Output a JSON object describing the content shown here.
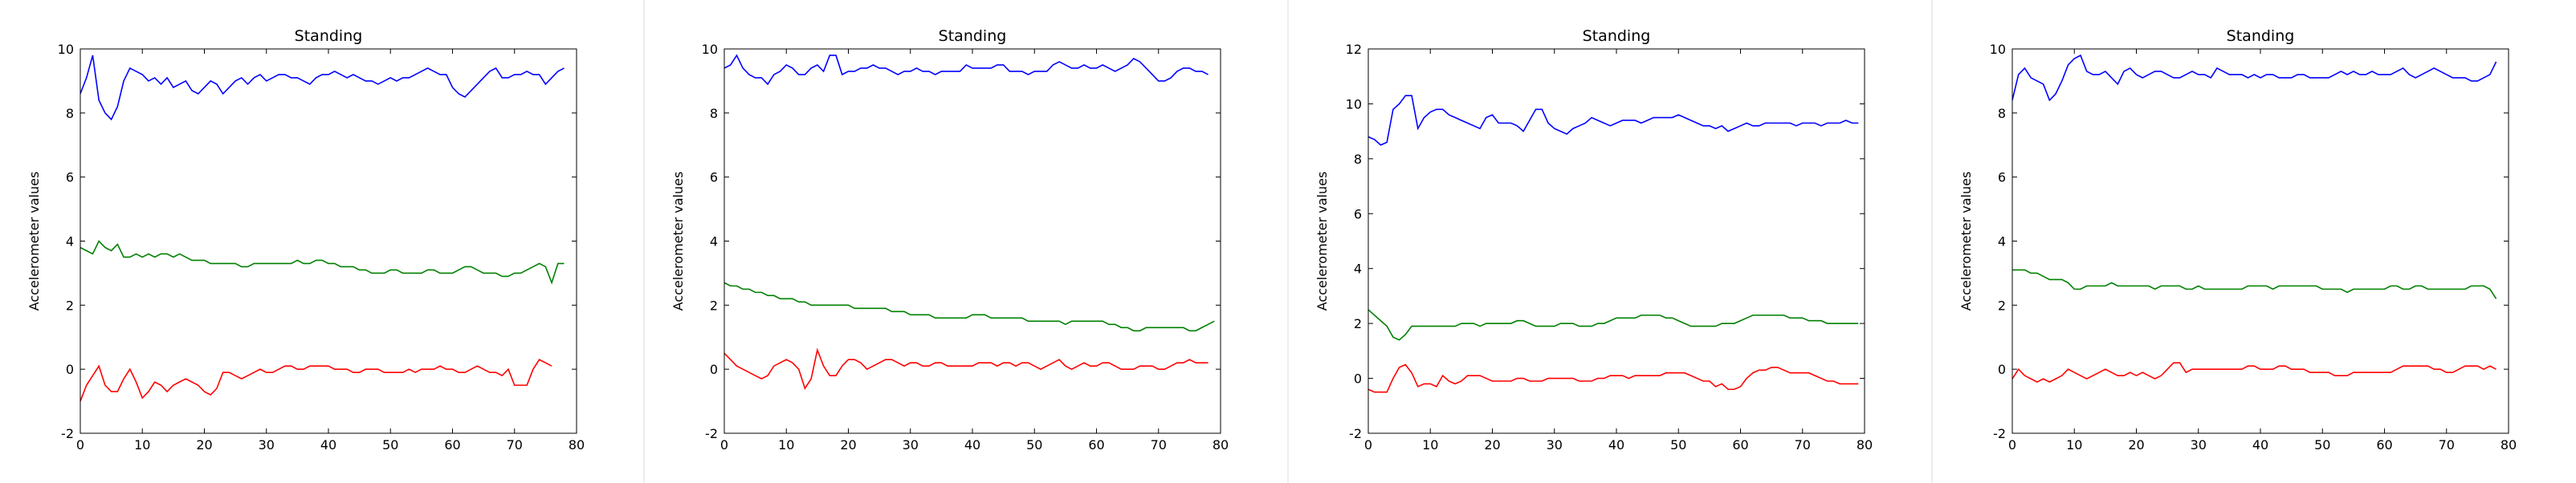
{
  "chart_data": [
    {
      "type": "line",
      "title": "Standing",
      "xlabel": "",
      "ylabel": "Accelerometer values",
      "xlim": [
        0,
        80
      ],
      "ylim": [
        -2,
        10
      ],
      "xticks": [
        0,
        10,
        20,
        30,
        40,
        50,
        60,
        70,
        80
      ],
      "yticks": [
        -2,
        0,
        2,
        4,
        6,
        8,
        10
      ],
      "grid": false,
      "series": [
        {
          "color": "#0000ff",
          "values": [
            8.6,
            9.1,
            9.8,
            8.4,
            8.0,
            7.8,
            8.2,
            9.0,
            9.4,
            9.3,
            9.2,
            9.0,
            9.1,
            8.9,
            9.1,
            8.8,
            8.9,
            9.0,
            8.7,
            8.6,
            8.8,
            9.0,
            8.9,
            8.6,
            8.8,
            9.0,
            9.1,
            8.9,
            9.1,
            9.2,
            9.0,
            9.1,
            9.2,
            9.2,
            9.1,
            9.1,
            9.0,
            8.9,
            9.1,
            9.2,
            9.2,
            9.3,
            9.2,
            9.1,
            9.2,
            9.1,
            9.0,
            9.0,
            8.9,
            9.0,
            9.1,
            9.0,
            9.1,
            9.1,
            9.2,
            9.3,
            9.4,
            9.3,
            9.2,
            9.2,
            8.8,
            8.6,
            8.5,
            8.7,
            8.9,
            9.1,
            9.3,
            9.4,
            9.1,
            9.1,
            9.2,
            9.2,
            9.3,
            9.2,
            9.2,
            8.9,
            9.1,
            9.3,
            9.4
          ]
        },
        {
          "color": "#008000",
          "values": [
            3.8,
            3.7,
            3.6,
            4.0,
            3.8,
            3.7,
            3.9,
            3.5,
            3.5,
            3.6,
            3.5,
            3.6,
            3.5,
            3.6,
            3.6,
            3.5,
            3.6,
            3.5,
            3.4,
            3.4,
            3.4,
            3.3,
            3.3,
            3.3,
            3.3,
            3.3,
            3.2,
            3.2,
            3.3,
            3.3,
            3.3,
            3.3,
            3.3,
            3.3,
            3.3,
            3.4,
            3.3,
            3.3,
            3.4,
            3.4,
            3.3,
            3.3,
            3.2,
            3.2,
            3.2,
            3.1,
            3.1,
            3.0,
            3.0,
            3.0,
            3.1,
            3.1,
            3.0,
            3.0,
            3.0,
            3.0,
            3.1,
            3.1,
            3.0,
            3.0,
            3.0,
            3.1,
            3.2,
            3.2,
            3.1,
            3.0,
            3.0,
            3.0,
            2.9,
            2.9,
            3.0,
            3.0,
            3.1,
            3.2,
            3.3,
            3.2,
            2.7,
            3.3,
            3.3
          ]
        },
        {
          "color": "#ff0000",
          "values": [
            -1.0,
            -0.5,
            -0.2,
            0.1,
            -0.5,
            -0.7,
            -0.7,
            -0.3,
            0.0,
            -0.4,
            -0.9,
            -0.7,
            -0.4,
            -0.5,
            -0.7,
            -0.5,
            -0.4,
            -0.3,
            -0.4,
            -0.5,
            -0.7,
            -0.8,
            -0.6,
            -0.1,
            -0.1,
            -0.2,
            -0.3,
            -0.2,
            -0.1,
            0.0,
            -0.1,
            -0.1,
            0.0,
            0.1,
            0.1,
            0.0,
            0.0,
            0.1,
            0.1,
            0.1,
            0.1,
            0.0,
            0.0,
            0.0,
            -0.1,
            -0.1,
            0.0,
            0.0,
            0.0,
            -0.1,
            -0.1,
            -0.1,
            -0.1,
            0.0,
            -0.1,
            0.0,
            0.0,
            0.0,
            0.1,
            0.0,
            0.0,
            -0.1,
            -0.1,
            0.0,
            0.1,
            0.0,
            -0.1,
            -0.1,
            -0.2,
            0.0,
            -0.5,
            -0.5,
            -0.5,
            0.0,
            0.3,
            0.2,
            0.1
          ]
        }
      ]
    },
    {
      "type": "line",
      "title": "Standing",
      "xlabel": "",
      "ylabel": "Accelerometer values",
      "xlim": [
        0,
        80
      ],
      "ylim": [
        -2,
        10
      ],
      "xticks": [
        0,
        10,
        20,
        30,
        40,
        50,
        60,
        70,
        80
      ],
      "yticks": [
        -2,
        0,
        2,
        4,
        6,
        8,
        10
      ],
      "grid": false,
      "series": [
        {
          "color": "#0000ff",
          "values": [
            9.4,
            9.5,
            9.8,
            9.4,
            9.2,
            9.1,
            9.1,
            8.9,
            9.2,
            9.3,
            9.5,
            9.4,
            9.2,
            9.2,
            9.4,
            9.5,
            9.3,
            9.8,
            9.8,
            9.2,
            9.3,
            9.3,
            9.4,
            9.4,
            9.5,
            9.4,
            9.4,
            9.3,
            9.2,
            9.3,
            9.3,
            9.4,
            9.3,
            9.3,
            9.2,
            9.3,
            9.3,
            9.3,
            9.3,
            9.5,
            9.4,
            9.4,
            9.4,
            9.4,
            9.5,
            9.5,
            9.3,
            9.3,
            9.3,
            9.2,
            9.3,
            9.3,
            9.3,
            9.5,
            9.6,
            9.5,
            9.4,
            9.4,
            9.5,
            9.4,
            9.4,
            9.5,
            9.4,
            9.3,
            9.4,
            9.5,
            9.7,
            9.6,
            9.4,
            9.2,
            9.0,
            9.0,
            9.1,
            9.3,
            9.4,
            9.4,
            9.3,
            9.3,
            9.2
          ]
        },
        {
          "color": "#008000",
          "values": [
            2.7,
            2.6,
            2.6,
            2.5,
            2.5,
            2.4,
            2.4,
            2.3,
            2.3,
            2.2,
            2.2,
            2.2,
            2.1,
            2.1,
            2.0,
            2.0,
            2.0,
            2.0,
            2.0,
            2.0,
            2.0,
            1.9,
            1.9,
            1.9,
            1.9,
            1.9,
            1.9,
            1.8,
            1.8,
            1.8,
            1.7,
            1.7,
            1.7,
            1.7,
            1.6,
            1.6,
            1.6,
            1.6,
            1.6,
            1.6,
            1.7,
            1.7,
            1.7,
            1.6,
            1.6,
            1.6,
            1.6,
            1.6,
            1.6,
            1.5,
            1.5,
            1.5,
            1.5,
            1.5,
            1.5,
            1.4,
            1.5,
            1.5,
            1.5,
            1.5,
            1.5,
            1.5,
            1.4,
            1.4,
            1.3,
            1.3,
            1.2,
            1.2,
            1.3,
            1.3,
            1.3,
            1.3,
            1.3,
            1.3,
            1.3,
            1.2,
            1.2,
            1.3,
            1.4,
            1.5
          ]
        },
        {
          "color": "#ff0000",
          "values": [
            0.5,
            0.3,
            0.1,
            0.0,
            -0.1,
            -0.2,
            -0.3,
            -0.2,
            0.1,
            0.2,
            0.3,
            0.2,
            0.0,
            -0.6,
            -0.3,
            0.6,
            0.1,
            -0.2,
            -0.2,
            0.1,
            0.3,
            0.3,
            0.2,
            0.0,
            0.1,
            0.2,
            0.3,
            0.3,
            0.2,
            0.1,
            0.2,
            0.2,
            0.1,
            0.1,
            0.2,
            0.2,
            0.1,
            0.1,
            0.1,
            0.1,
            0.1,
            0.2,
            0.2,
            0.2,
            0.1,
            0.2,
            0.2,
            0.1,
            0.2,
            0.2,
            0.1,
            0.0,
            0.1,
            0.2,
            0.3,
            0.1,
            0.0,
            0.1,
            0.2,
            0.1,
            0.1,
            0.2,
            0.2,
            0.1,
            0.0,
            0.0,
            0.0,
            0.1,
            0.1,
            0.1,
            0.0,
            0.0,
            0.1,
            0.2,
            0.2,
            0.3,
            0.2,
            0.2,
            0.2
          ]
        }
      ]
    },
    {
      "type": "line",
      "title": "Standing",
      "xlabel": "",
      "ylabel": "Accelerometer values",
      "xlim": [
        0,
        80
      ],
      "ylim": [
        -2,
        12
      ],
      "xticks": [
        0,
        10,
        20,
        30,
        40,
        50,
        60,
        70,
        80
      ],
      "yticks": [
        -2,
        0,
        2,
        4,
        6,
        8,
        10,
        12
      ],
      "grid": false,
      "series": [
        {
          "color": "#0000ff",
          "values": [
            8.8,
            8.7,
            8.5,
            8.6,
            9.8,
            10.0,
            10.3,
            10.3,
            9.1,
            9.5,
            9.7,
            9.8,
            9.8,
            9.6,
            9.5,
            9.4,
            9.3,
            9.2,
            9.1,
            9.5,
            9.6,
            9.3,
            9.3,
            9.3,
            9.2,
            9.0,
            9.4,
            9.8,
            9.8,
            9.3,
            9.1,
            9.0,
            8.9,
            9.1,
            9.2,
            9.3,
            9.5,
            9.4,
            9.3,
            9.2,
            9.3,
            9.4,
            9.4,
            9.4,
            9.3,
            9.4,
            9.5,
            9.5,
            9.5,
            9.5,
            9.6,
            9.5,
            9.4,
            9.3,
            9.2,
            9.2,
            9.1,
            9.2,
            9.0,
            9.1,
            9.2,
            9.3,
            9.2,
            9.2,
            9.3,
            9.3,
            9.3,
            9.3,
            9.3,
            9.2,
            9.3,
            9.3,
            9.3,
            9.2,
            9.3,
            9.3,
            9.3,
            9.4,
            9.3,
            9.3
          ]
        },
        {
          "color": "#008000",
          "values": [
            2.5,
            2.3,
            2.1,
            1.9,
            1.5,
            1.4,
            1.6,
            1.9,
            1.9,
            1.9,
            1.9,
            1.9,
            1.9,
            1.9,
            1.9,
            2.0,
            2.0,
            2.0,
            1.9,
            2.0,
            2.0,
            2.0,
            2.0,
            2.0,
            2.1,
            2.1,
            2.0,
            1.9,
            1.9,
            1.9,
            1.9,
            2.0,
            2.0,
            2.0,
            1.9,
            1.9,
            1.9,
            2.0,
            2.0,
            2.1,
            2.2,
            2.2,
            2.2,
            2.2,
            2.3,
            2.3,
            2.3,
            2.3,
            2.2,
            2.2,
            2.1,
            2.0,
            1.9,
            1.9,
            1.9,
            1.9,
            1.9,
            2.0,
            2.0,
            2.0,
            2.1,
            2.2,
            2.3,
            2.3,
            2.3,
            2.3,
            2.3,
            2.3,
            2.2,
            2.2,
            2.2,
            2.1,
            2.1,
            2.1,
            2.0,
            2.0,
            2.0,
            2.0,
            2.0,
            2.0
          ]
        },
        {
          "color": "#ff0000",
          "values": [
            -0.4,
            -0.5,
            -0.5,
            -0.5,
            0.0,
            0.4,
            0.5,
            0.2,
            -0.3,
            -0.2,
            -0.2,
            -0.3,
            0.1,
            -0.1,
            -0.2,
            -0.1,
            0.1,
            0.1,
            0.1,
            0.0,
            -0.1,
            -0.1,
            -0.1,
            -0.1,
            0.0,
            0.0,
            -0.1,
            -0.1,
            -0.1,
            0.0,
            0.0,
            0.0,
            0.0,
            0.0,
            -0.1,
            -0.1,
            -0.1,
            0.0,
            0.0,
            0.1,
            0.1,
            0.1,
            0.0,
            0.1,
            0.1,
            0.1,
            0.1,
            0.1,
            0.2,
            0.2,
            0.2,
            0.2,
            0.1,
            0.0,
            -0.1,
            -0.1,
            -0.3,
            -0.2,
            -0.4,
            -0.4,
            -0.3,
            0.0,
            0.2,
            0.3,
            0.3,
            0.4,
            0.4,
            0.3,
            0.2,
            0.2,
            0.2,
            0.2,
            0.1,
            0.0,
            -0.1,
            -0.1,
            -0.2,
            -0.2,
            -0.2,
            -0.2
          ]
        }
      ]
    },
    {
      "type": "line",
      "title": "Standing",
      "xlabel": "",
      "ylabel": "Accelerometer values",
      "xlim": [
        0,
        80
      ],
      "ylim": [
        -2,
        10
      ],
      "xticks": [
        0,
        10,
        20,
        30,
        40,
        50,
        60,
        70,
        80
      ],
      "yticks": [
        -2,
        0,
        2,
        4,
        6,
        8,
        10
      ],
      "grid": false,
      "series": [
        {
          "color": "#0000ff",
          "values": [
            8.4,
            9.2,
            9.4,
            9.1,
            9.0,
            8.9,
            8.4,
            8.6,
            9.0,
            9.5,
            9.7,
            9.8,
            9.3,
            9.2,
            9.2,
            9.3,
            9.1,
            8.9,
            9.3,
            9.4,
            9.2,
            9.1,
            9.2,
            9.3,
            9.3,
            9.2,
            9.1,
            9.1,
            9.2,
            9.3,
            9.2,
            9.2,
            9.1,
            9.4,
            9.3,
            9.2,
            9.2,
            9.2,
            9.1,
            9.2,
            9.1,
            9.2,
            9.2,
            9.1,
            9.1,
            9.1,
            9.2,
            9.2,
            9.1,
            9.1,
            9.1,
            9.1,
            9.2,
            9.3,
            9.2,
            9.3,
            9.2,
            9.2,
            9.3,
            9.2,
            9.2,
            9.2,
            9.3,
            9.4,
            9.2,
            9.1,
            9.2,
            9.3,
            9.4,
            9.3,
            9.2,
            9.1,
            9.1,
            9.1,
            9.0,
            9.0,
            9.1,
            9.2,
            9.6
          ]
        },
        {
          "color": "#008000",
          "values": [
            3.1,
            3.1,
            3.1,
            3.0,
            3.0,
            2.9,
            2.8,
            2.8,
            2.8,
            2.7,
            2.5,
            2.5,
            2.6,
            2.6,
            2.6,
            2.6,
            2.7,
            2.6,
            2.6,
            2.6,
            2.6,
            2.6,
            2.6,
            2.5,
            2.6,
            2.6,
            2.6,
            2.6,
            2.5,
            2.5,
            2.6,
            2.5,
            2.5,
            2.5,
            2.5,
            2.5,
            2.5,
            2.5,
            2.6,
            2.6,
            2.6,
            2.6,
            2.5,
            2.6,
            2.6,
            2.6,
            2.6,
            2.6,
            2.6,
            2.6,
            2.5,
            2.5,
            2.5,
            2.5,
            2.4,
            2.5,
            2.5,
            2.5,
            2.5,
            2.5,
            2.5,
            2.6,
            2.6,
            2.5,
            2.5,
            2.6,
            2.6,
            2.5,
            2.5,
            2.5,
            2.5,
            2.5,
            2.5,
            2.5,
            2.6,
            2.6,
            2.6,
            2.5,
            2.2
          ]
        },
        {
          "color": "#ff0000",
          "values": [
            -0.3,
            0.0,
            -0.2,
            -0.3,
            -0.4,
            -0.3,
            -0.4,
            -0.3,
            -0.2,
            0.0,
            -0.1,
            -0.2,
            -0.3,
            -0.2,
            -0.1,
            0.0,
            -0.1,
            -0.2,
            -0.2,
            -0.1,
            -0.2,
            -0.1,
            -0.2,
            -0.3,
            -0.2,
            0.0,
            0.2,
            0.2,
            -0.1,
            0.0,
            0.0,
            0.0,
            0.0,
            0.0,
            0.0,
            0.0,
            0.0,
            0.0,
            0.1,
            0.1,
            0.0,
            0.0,
            0.0,
            0.1,
            0.1,
            0.0,
            0.0,
            0.0,
            -0.1,
            -0.1,
            -0.1,
            -0.1,
            -0.2,
            -0.2,
            -0.2,
            -0.1,
            -0.1,
            -0.1,
            -0.1,
            -0.1,
            -0.1,
            -0.1,
            0.0,
            0.1,
            0.1,
            0.1,
            0.1,
            0.1,
            0.0,
            0.0,
            -0.1,
            -0.1,
            0.0,
            0.1,
            0.1,
            0.1,
            0.0,
            0.1,
            0.0
          ]
        }
      ]
    }
  ]
}
